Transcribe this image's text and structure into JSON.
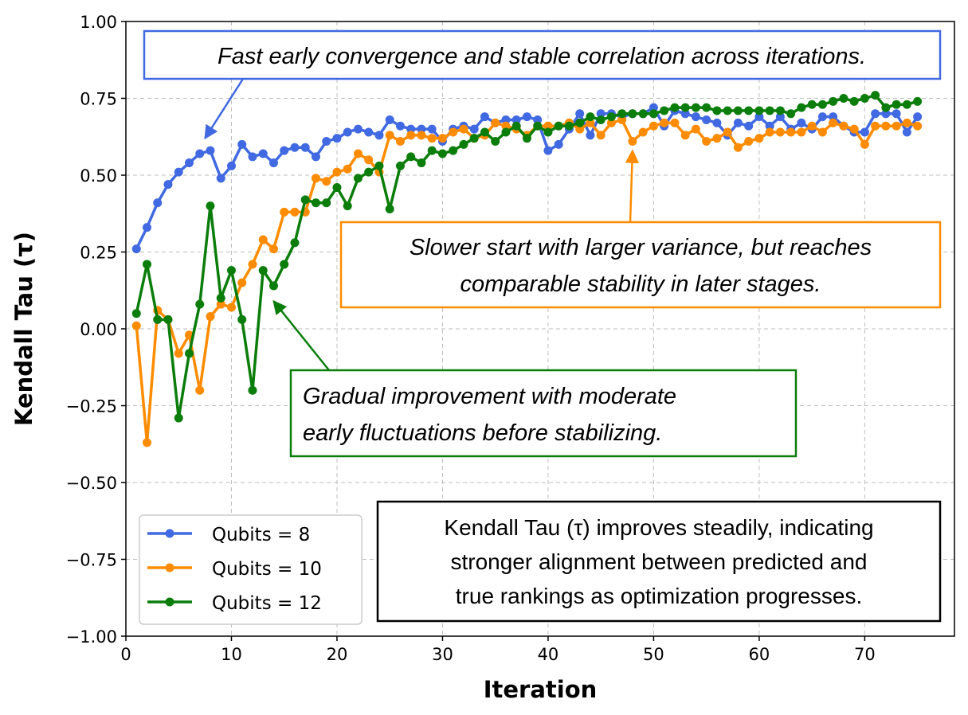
{
  "chart_data": {
    "type": "line",
    "xlabel": "Iteration",
    "ylabel": "Kendall Tau (τ)",
    "xlim": [
      0,
      78.5
    ],
    "ylim": [
      -1.0,
      1.0
    ],
    "xticks": [
      0,
      10,
      20,
      30,
      40,
      50,
      60,
      70
    ],
    "yticks": [
      -1.0,
      -0.75,
      -0.5,
      -0.25,
      0.0,
      0.25,
      0.5,
      0.75,
      1.0
    ],
    "ytick_labels": [
      "−1.00",
      "−0.75",
      "−0.50",
      "−0.25",
      "0.00",
      "0.25",
      "0.50",
      "0.75",
      "1.00"
    ],
    "grid": true,
    "legend_position": "bottom-left",
    "series": [
      {
        "name": "Qubits = 8",
        "color": "#4169e1",
        "values": [
          0.26,
          0.33,
          0.41,
          0.47,
          0.51,
          0.54,
          0.57,
          0.58,
          0.49,
          0.53,
          0.6,
          0.56,
          0.57,
          0.54,
          0.58,
          0.59,
          0.59,
          0.56,
          0.61,
          0.62,
          0.64,
          0.65,
          0.64,
          0.63,
          0.68,
          0.66,
          0.65,
          0.65,
          0.65,
          0.61,
          0.65,
          0.66,
          0.65,
          0.69,
          0.67,
          0.68,
          0.68,
          0.69,
          0.68,
          0.58,
          0.6,
          0.65,
          0.7,
          0.63,
          0.7,
          0.7,
          0.69,
          0.7,
          0.7,
          0.72,
          0.66,
          0.71,
          0.7,
          0.69,
          0.68,
          0.67,
          0.63,
          0.67,
          0.66,
          0.69,
          0.66,
          0.69,
          0.65,
          0.67,
          0.65,
          0.69,
          0.69,
          0.66,
          0.64,
          0.64,
          0.7,
          0.7,
          0.7,
          0.64,
          0.69
        ]
      },
      {
        "name": "Qubits = 10",
        "color": "#ff8c00",
        "values": [
          0.01,
          -0.37,
          0.06,
          0.03,
          -0.08,
          -0.02,
          -0.2,
          0.04,
          0.08,
          0.07,
          0.15,
          0.21,
          0.29,
          0.26,
          0.38,
          0.38,
          0.38,
          0.49,
          0.48,
          0.51,
          0.52,
          0.57,
          0.55,
          0.51,
          0.63,
          0.61,
          0.63,
          0.63,
          0.62,
          0.62,
          0.64,
          0.65,
          0.62,
          0.63,
          0.67,
          0.66,
          0.65,
          0.63,
          0.66,
          0.66,
          0.66,
          0.67,
          0.65,
          0.67,
          0.63,
          0.67,
          0.68,
          0.61,
          0.64,
          0.66,
          0.67,
          0.67,
          0.63,
          0.65,
          0.61,
          0.62,
          0.64,
          0.59,
          0.61,
          0.62,
          0.64,
          0.64,
          0.64,
          0.64,
          0.66,
          0.64,
          0.67,
          0.66,
          0.65,
          0.6,
          0.66,
          0.66,
          0.66,
          0.67,
          0.66
        ]
      },
      {
        "name": "Qubits = 12",
        "color": "#0b7d0b",
        "values": [
          0.05,
          0.21,
          0.03,
          0.03,
          -0.29,
          -0.08,
          0.08,
          0.4,
          0.1,
          0.19,
          0.03,
          -0.2,
          0.19,
          0.14,
          0.21,
          0.28,
          0.42,
          0.41,
          0.41,
          0.46,
          0.4,
          0.49,
          0.51,
          0.53,
          0.39,
          0.53,
          0.56,
          0.54,
          0.58,
          0.57,
          0.58,
          0.6,
          0.62,
          0.64,
          0.61,
          0.64,
          0.66,
          0.62,
          0.66,
          0.64,
          0.66,
          0.66,
          0.67,
          0.69,
          0.68,
          0.69,
          0.7,
          0.7,
          0.7,
          0.7,
          0.71,
          0.72,
          0.72,
          0.72,
          0.72,
          0.71,
          0.71,
          0.71,
          0.71,
          0.71,
          0.71,
          0.71,
          0.7,
          0.72,
          0.73,
          0.73,
          0.74,
          0.75,
          0.74,
          0.75,
          0.76,
          0.72,
          0.73,
          0.73,
          0.74
        ]
      }
    ],
    "annotations": [
      {
        "id": "blue",
        "text_lines": [
          "Fast early convergence and stable correlation across iterations."
        ],
        "color": "#4169e1",
        "arrow_to": [
          7.5,
          0.62
        ]
      },
      {
        "id": "orange",
        "text_lines": [
          "Slower start with larger variance, but reaches",
          "comparable stability in later stages."
        ],
        "color": "#ff8c00",
        "arrow_to": [
          48,
          0.58
        ]
      },
      {
        "id": "green",
        "text_lines": [
          "Gradual improvement with moderate",
          "early fluctuations before stabilizing."
        ],
        "color": "#0b7d0b",
        "arrow_to": [
          14,
          0.09
        ]
      }
    ],
    "note": {
      "text_lines": [
        "Kendall Tau (τ) improves steadily, indicating",
        "stronger alignment between predicted and",
        "true rankings as optimization progresses."
      ],
      "color": "#000000"
    }
  }
}
